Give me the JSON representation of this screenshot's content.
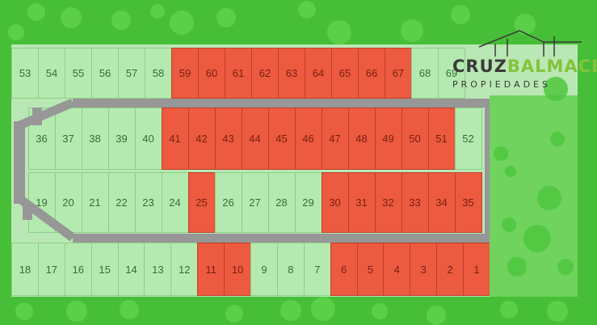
{
  "logo": {
    "name_part1": "CRUZ",
    "name_part2": "BALMACEDA",
    "tagline": "PROPIEDADES"
  },
  "colors": {
    "sold": "#ec5a40",
    "available": "#b4eab0",
    "road": "#979797",
    "grass": "#47be37"
  },
  "lots": [
    {
      "number": "53",
      "status": "available"
    },
    {
      "number": "54",
      "status": "available"
    },
    {
      "number": "55",
      "status": "available"
    },
    {
      "number": "56",
      "status": "available"
    },
    {
      "number": "57",
      "status": "available"
    },
    {
      "number": "58",
      "status": "available"
    },
    {
      "number": "59",
      "status": "sold"
    },
    {
      "number": "60",
      "status": "sold"
    },
    {
      "number": "61",
      "status": "sold"
    },
    {
      "number": "62",
      "status": "sold"
    },
    {
      "number": "63",
      "status": "sold"
    },
    {
      "number": "64",
      "status": "sold"
    },
    {
      "number": "65",
      "status": "sold"
    },
    {
      "number": "66",
      "status": "sold"
    },
    {
      "number": "67",
      "status": "sold"
    },
    {
      "number": "68",
      "status": "available"
    },
    {
      "number": "69",
      "status": "available"
    },
    {
      "number": "36",
      "status": "available"
    },
    {
      "number": "37",
      "status": "available"
    },
    {
      "number": "38",
      "status": "available"
    },
    {
      "number": "39",
      "status": "available"
    },
    {
      "number": "40",
      "status": "available"
    },
    {
      "number": "41",
      "status": "sold"
    },
    {
      "number": "42",
      "status": "sold"
    },
    {
      "number": "43",
      "status": "sold"
    },
    {
      "number": "44",
      "status": "sold"
    },
    {
      "number": "45",
      "status": "sold"
    },
    {
      "number": "46",
      "status": "sold"
    },
    {
      "number": "47",
      "status": "sold"
    },
    {
      "number": "48",
      "status": "sold"
    },
    {
      "number": "49",
      "status": "sold"
    },
    {
      "number": "50",
      "status": "sold"
    },
    {
      "number": "51",
      "status": "sold"
    },
    {
      "number": "52",
      "status": "available"
    },
    {
      "number": "19",
      "status": "available"
    },
    {
      "number": "20",
      "status": "available"
    },
    {
      "number": "21",
      "status": "available"
    },
    {
      "number": "22",
      "status": "available"
    },
    {
      "number": "23",
      "status": "available"
    },
    {
      "number": "24",
      "status": "available"
    },
    {
      "number": "25",
      "status": "sold"
    },
    {
      "number": "26",
      "status": "available"
    },
    {
      "number": "27",
      "status": "available"
    },
    {
      "number": "28",
      "status": "available"
    },
    {
      "number": "29",
      "status": "available"
    },
    {
      "number": "30",
      "status": "sold"
    },
    {
      "number": "31",
      "status": "sold"
    },
    {
      "number": "32",
      "status": "sold"
    },
    {
      "number": "33",
      "status": "sold"
    },
    {
      "number": "34",
      "status": "sold"
    },
    {
      "number": "35",
      "status": "sold"
    },
    {
      "number": "18",
      "status": "available"
    },
    {
      "number": "17",
      "status": "available"
    },
    {
      "number": "16",
      "status": "available"
    },
    {
      "number": "15",
      "status": "available"
    },
    {
      "number": "14",
      "status": "available"
    },
    {
      "number": "13",
      "status": "available"
    },
    {
      "number": "12",
      "status": "available"
    },
    {
      "number": "11",
      "status": "sold"
    },
    {
      "number": "10",
      "status": "sold"
    },
    {
      "number": "9",
      "status": "available"
    },
    {
      "number": "8",
      "status": "available"
    },
    {
      "number": "7",
      "status": "available"
    },
    {
      "number": "6",
      "status": "sold"
    },
    {
      "number": "5",
      "status": "sold"
    },
    {
      "number": "4",
      "status": "sold"
    },
    {
      "number": "3",
      "status": "sold"
    },
    {
      "number": "2",
      "status": "sold"
    },
    {
      "number": "1",
      "status": "sold"
    }
  ]
}
